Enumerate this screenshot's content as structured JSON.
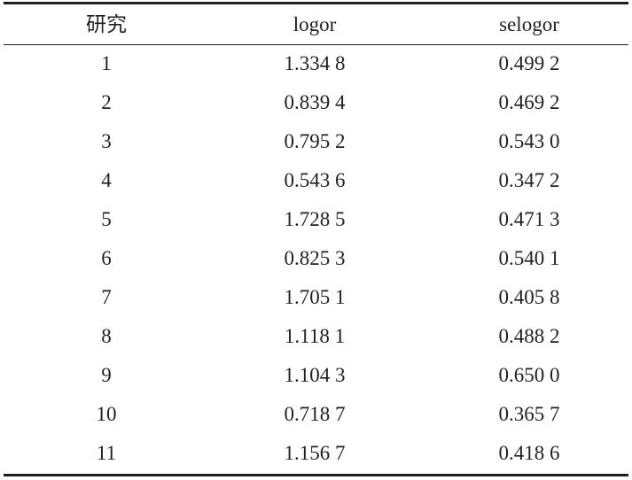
{
  "table": {
    "header": [
      "研究",
      "logor",
      "selogor"
    ],
    "rows": [
      [
        "1",
        "1.334 8",
        "0.499 2"
      ],
      [
        "2",
        "0.839 4",
        "0.469 2"
      ],
      [
        "3",
        "0.795 2",
        "0.543 0"
      ],
      [
        "4",
        "0.543 6",
        "0.347 2"
      ],
      [
        "5",
        "1.728 5",
        "0.471 3"
      ],
      [
        "6",
        "0.825 3",
        "0.540 1"
      ],
      [
        "7",
        "1.705 1",
        "0.405 8"
      ],
      [
        "8",
        "1.118 1",
        "0.488 2"
      ],
      [
        "9",
        "1.104 3",
        "0.650 0"
      ],
      [
        "10",
        "0.718 7",
        "0.365 7"
      ],
      [
        "11",
        "1.156 7",
        "0.418 6"
      ]
    ]
  }
}
